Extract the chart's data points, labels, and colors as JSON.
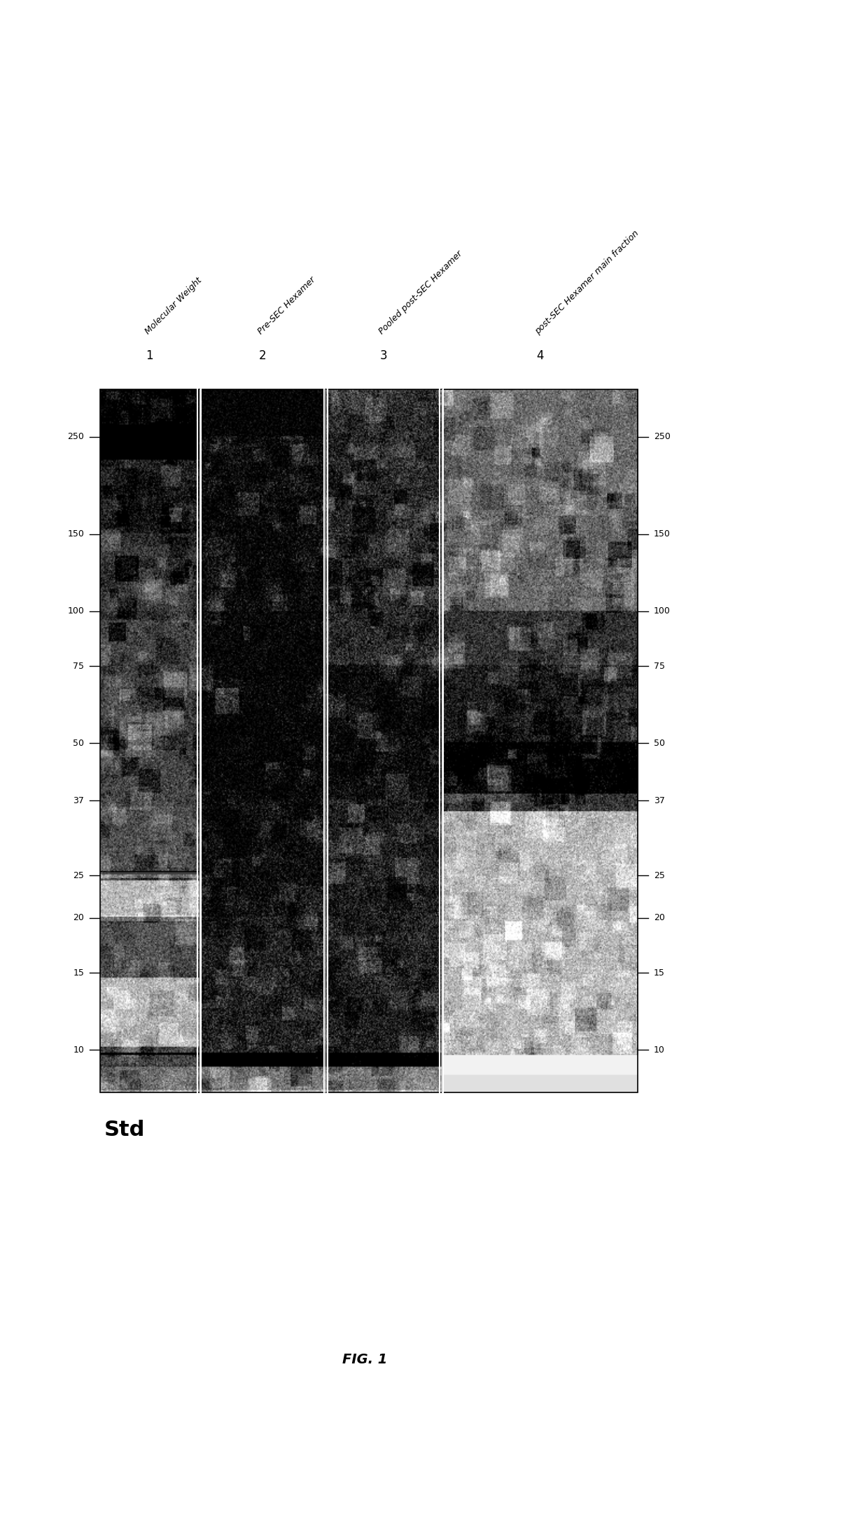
{
  "fig_label": "FIG. 1",
  "column_numbers": [
    "1",
    "2",
    "3",
    "4"
  ],
  "column_labels": [
    "Molecular Weight",
    "Pre-SEC Hexamer",
    "Pooled post-SEC Hexamer",
    "post-SEC Hexamer main fraction"
  ],
  "mw_markers_left": [
    250,
    150,
    100,
    75,
    50,
    37,
    25,
    20,
    15,
    10
  ],
  "mw_markers_right": [
    250,
    150,
    100,
    75,
    50,
    37,
    25,
    20,
    15,
    10
  ],
  "std_label": "Std",
  "background_color": "#ffffff",
  "gel_noise_seed": 42
}
